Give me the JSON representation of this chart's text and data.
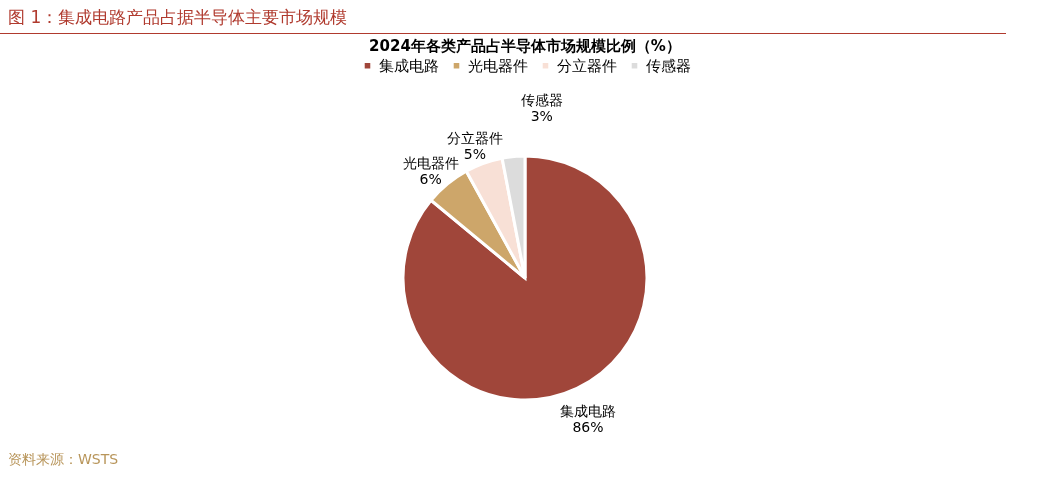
{
  "chart_data": {
    "type": "pie",
    "title": "图 1：集成电路产品占据半导体主要市场规模",
    "subtitle": "2024年各类产品占半导体市场规模比例（%）",
    "categories": [
      "集成电路",
      "光电器件",
      "分立器件",
      "传感器"
    ],
    "values": [
      86,
      6,
      5,
      3
    ],
    "value_labels": [
      "86%",
      "6%",
      "5%",
      "3%"
    ],
    "colors": [
      "#a0463a",
      "#cda66a",
      "#f8e0d6",
      "#dcdcdc"
    ],
    "legend": "top",
    "annotations": [
      "资料来源：WSTS"
    ]
  }
}
